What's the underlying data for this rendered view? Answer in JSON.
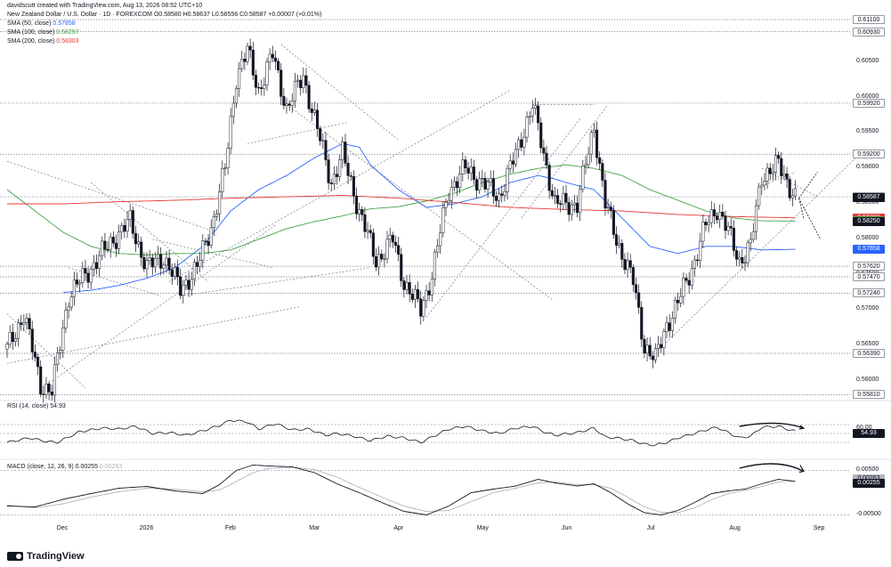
{
  "credit": "davidscutt created with TradingView.com, Aug 13, 2026 08:52 UTC+10",
  "header": {
    "symbol_line": "New Zealand Dollar / U.S. Dollar · 1D · FOREXCOM",
    "ohlc": "O0.58580 H0.58637 L0.58556 C0.58587 +0.00007 (+0.01%)",
    "sma50": {
      "label": "SMA (50, close)",
      "value": "0.57858",
      "color": "#2962ff"
    },
    "sma100": {
      "label": "SMA (100, close)",
      "value": "0.58257",
      "color": "#43a047"
    },
    "sma200": {
      "label": "SMA (200, close)",
      "value": "0.58303",
      "color": "#e53935"
    }
  },
  "rsi_header": {
    "label": "RSI (14, close)",
    "value": "54.93"
  },
  "macd_header": {
    "label": "MACD (close, 12, 26, 9)",
    "macd": "0.00255",
    "signal": "0.00263"
  },
  "footer_brand": "TradingView",
  "chart_data": {
    "type": "candlestick",
    "title": "New Zealand Dollar / U.S. Dollar · 1D · FOREXCOM",
    "x_ticks": [
      "Dec",
      "2026",
      "Feb",
      "Mar",
      "Apr",
      "May",
      "Jun",
      "Jul",
      "Aug",
      "Sep"
    ],
    "y_ticks": [
      "0.60500",
      "0.60000",
      "0.59500",
      "0.59000",
      "0.58500",
      "0.58000",
      "0.57500",
      "0.57000",
      "0.56500",
      "0.56000"
    ],
    "levels": [
      "0.61100",
      "0.60930",
      "0.59920",
      "0.59200",
      "0.58600",
      "0.57620",
      "0.57470",
      "0.57240",
      "0.56390",
      "0.55810"
    ],
    "labels": [
      {
        "value": "0.58587",
        "text": "0.58587",
        "style": "dark"
      },
      {
        "value": "0.58303",
        "text": "0.58303",
        "color": "#e53935"
      },
      {
        "value": "0.58257",
        "text": "0.58257",
        "color": "#43a047"
      },
      {
        "value": "0.58250",
        "text": "0.58250",
        "style": "dark"
      },
      {
        "value": "0.57858",
        "text": "0.57858",
        "color": "#2962ff"
      }
    ],
    "ylim": [
      0.5575,
      0.6115
    ],
    "close_anchors": [
      [
        0,
        0.5645
      ],
      [
        6,
        0.5695
      ],
      [
        12,
        0.5595
      ],
      [
        16,
        0.5585
      ],
      [
        22,
        0.572
      ],
      [
        30,
        0.576
      ],
      [
        38,
        0.58
      ],
      [
        44,
        0.5825
      ],
      [
        50,
        0.576
      ],
      [
        56,
        0.5775
      ],
      [
        62,
        0.573
      ],
      [
        68,
        0.576
      ],
      [
        74,
        0.583
      ],
      [
        78,
        0.59
      ],
      [
        82,
        0.603
      ],
      [
        86,
        0.6065
      ],
      [
        90,
        0.601
      ],
      [
        95,
        0.606
      ],
      [
        100,
        0.5985
      ],
      [
        106,
        0.603
      ],
      [
        112,
        0.594
      ],
      [
        116,
        0.588
      ],
      [
        120,
        0.592
      ],
      [
        126,
        0.584
      ],
      [
        132,
        0.577
      ],
      [
        138,
        0.58
      ],
      [
        142,
        0.574
      ],
      [
        148,
        0.57
      ],
      [
        152,
        0.575
      ],
      [
        158,
        0.587
      ],
      [
        164,
        0.59
      ],
      [
        170,
        0.588
      ],
      [
        176,
        0.586
      ],
      [
        182,
        0.592
      ],
      [
        188,
        0.599
      ],
      [
        192,
        0.592
      ],
      [
        196,
        0.585
      ],
      [
        204,
        0.585
      ],
      [
        210,
        0.596
      ],
      [
        214,
        0.585
      ],
      [
        218,
        0.58
      ],
      [
        224,
        0.574
      ],
      [
        228,
        0.565
      ],
      [
        232,
        0.563
      ],
      [
        236,
        0.568
      ],
      [
        240,
        0.571
      ],
      [
        246,
        0.577
      ],
      [
        250,
        0.582
      ],
      [
        254,
        0.5845
      ],
      [
        258,
        0.581
      ],
      [
        262,
        0.577
      ],
      [
        266,
        0.579
      ],
      [
        270,
        0.589
      ],
      [
        276,
        0.5905
      ],
      [
        280,
        0.5875
      ],
      [
        282,
        0.586
      ]
    ],
    "series": [
      {
        "name": "SMA (50, close)",
        "color": "#2962ff",
        "values": [
          [
            20,
            0.5725
          ],
          [
            30,
            0.5728
          ],
          [
            40,
            0.5735
          ],
          [
            50,
            0.5745
          ],
          [
            60,
            0.576
          ],
          [
            70,
            0.579
          ],
          [
            80,
            0.584
          ],
          [
            90,
            0.587
          ],
          [
            100,
            0.589
          ],
          [
            110,
            0.5915
          ],
          [
            120,
            0.5935
          ],
          [
            126,
            0.593
          ],
          [
            130,
            0.5905
          ],
          [
            140,
            0.587
          ],
          [
            150,
            0.5845
          ],
          [
            160,
            0.585
          ],
          [
            170,
            0.586
          ],
          [
            180,
            0.588
          ],
          [
            190,
            0.589
          ],
          [
            196,
            0.5885
          ],
          [
            200,
            0.588
          ],
          [
            210,
            0.587
          ],
          [
            220,
            0.583
          ],
          [
            230,
            0.579
          ],
          [
            240,
            0.578
          ],
          [
            250,
            0.579
          ],
          [
            260,
            0.579
          ],
          [
            270,
            0.5785
          ],
          [
            282,
            0.57858
          ]
        ]
      },
      {
        "name": "SMA (100, close)",
        "color": "#43a047",
        "values": [
          [
            0,
            0.587
          ],
          [
            10,
            0.584
          ],
          [
            20,
            0.581
          ],
          [
            30,
            0.579
          ],
          [
            40,
            0.578
          ],
          [
            50,
            0.5778
          ],
          [
            60,
            0.578
          ],
          [
            70,
            0.578
          ],
          [
            80,
            0.5785
          ],
          [
            90,
            0.58
          ],
          [
            100,
            0.5815
          ],
          [
            110,
            0.5825
          ],
          [
            120,
            0.5833
          ],
          [
            130,
            0.5843
          ],
          [
            140,
            0.5846
          ],
          [
            150,
            0.5854
          ],
          [
            160,
            0.5865
          ],
          [
            170,
            0.588
          ],
          [
            180,
            0.5892
          ],
          [
            190,
            0.59
          ],
          [
            200,
            0.5905
          ],
          [
            210,
            0.59
          ],
          [
            220,
            0.589
          ],
          [
            230,
            0.587
          ],
          [
            240,
            0.5855
          ],
          [
            250,
            0.584
          ],
          [
            260,
            0.583
          ],
          [
            270,
            0.5826
          ],
          [
            282,
            0.58257
          ]
        ]
      },
      {
        "name": "SMA (200, close)",
        "color": "#e53935",
        "values": [
          [
            0,
            0.585
          ],
          [
            20,
            0.585
          ],
          [
            40,
            0.5853
          ],
          [
            60,
            0.5855
          ],
          [
            80,
            0.5858
          ],
          [
            100,
            0.586
          ],
          [
            120,
            0.5862
          ],
          [
            140,
            0.5858
          ],
          [
            160,
            0.5852
          ],
          [
            180,
            0.5845
          ],
          [
            200,
            0.5842
          ],
          [
            220,
            0.584
          ],
          [
            240,
            0.5835
          ],
          [
            260,
            0.5832
          ],
          [
            282,
            0.58303
          ]
        ]
      }
    ],
    "rsi": {
      "y_ticks": [
        "60.00",
        "40.00"
      ],
      "last": "54.93",
      "anchors": [
        [
          0,
          30
        ],
        [
          8,
          40
        ],
        [
          14,
          32
        ],
        [
          18,
          30
        ],
        [
          26,
          54
        ],
        [
          34,
          62
        ],
        [
          40,
          60
        ],
        [
          46,
          66
        ],
        [
          52,
          50
        ],
        [
          58,
          52
        ],
        [
          64,
          46
        ],
        [
          70,
          56
        ],
        [
          76,
          68
        ],
        [
          80,
          80
        ],
        [
          86,
          76
        ],
        [
          90,
          60
        ],
        [
          96,
          72
        ],
        [
          102,
          58
        ],
        [
          108,
          60
        ],
        [
          114,
          46
        ],
        [
          118,
          50
        ],
        [
          124,
          44
        ],
        [
          130,
          34
        ],
        [
          136,
          44
        ],
        [
          142,
          40
        ],
        [
          148,
          30
        ],
        [
          152,
          42
        ],
        [
          158,
          60
        ],
        [
          164,
          66
        ],
        [
          170,
          56
        ],
        [
          176,
          50
        ],
        [
          182,
          62
        ],
        [
          188,
          66
        ],
        [
          192,
          54
        ],
        [
          196,
          46
        ],
        [
          204,
          52
        ],
        [
          210,
          62
        ],
        [
          214,
          42
        ],
        [
          218,
          40
        ],
        [
          224,
          34
        ],
        [
          228,
          26
        ],
        [
          232,
          24
        ],
        [
          236,
          30
        ],
        [
          240,
          40
        ],
        [
          246,
          50
        ],
        [
          250,
          58
        ],
        [
          254,
          64
        ],
        [
          258,
          52
        ],
        [
          262,
          40
        ],
        [
          266,
          44
        ],
        [
          270,
          64
        ],
        [
          276,
          66
        ],
        [
          280,
          58
        ],
        [
          282,
          54.93
        ]
      ]
    },
    "macd": {
      "y_ticks": [
        "0.00500",
        "-0.00500"
      ],
      "macd_last": "0.00255",
      "signal_last": "0.00263",
      "macd_anchors": [
        [
          0,
          -0.003
        ],
        [
          10,
          -0.0032
        ],
        [
          20,
          -0.0015
        ],
        [
          30,
          -0.0002
        ],
        [
          40,
          0.001
        ],
        [
          50,
          0.0014
        ],
        [
          60,
          0.0004
        ],
        [
          70,
          -0.0002
        ],
        [
          76,
          0.0018
        ],
        [
          82,
          0.005
        ],
        [
          88,
          0.0062
        ],
        [
          94,
          0.006
        ],
        [
          102,
          0.0058
        ],
        [
          110,
          0.0045
        ],
        [
          118,
          0.002
        ],
        [
          126,
          0.0
        ],
        [
          134,
          -0.0022
        ],
        [
          142,
          -0.0042
        ],
        [
          150,
          -0.005
        ],
        [
          158,
          -0.003
        ],
        [
          166,
          0.0
        ],
        [
          174,
          0.0008
        ],
        [
          182,
          0.0015
        ],
        [
          190,
          0.003
        ],
        [
          196,
          0.0022
        ],
        [
          204,
          0.0015
        ],
        [
          210,
          0.002
        ],
        [
          216,
          0.0
        ],
        [
          222,
          -0.0025
        ],
        [
          228,
          -0.0045
        ],
        [
          234,
          -0.005
        ],
        [
          240,
          -0.004
        ],
        [
          246,
          -0.0022
        ],
        [
          252,
          -0.0002
        ],
        [
          258,
          0.0004
        ],
        [
          264,
          0.0008
        ],
        [
          270,
          0.002
        ],
        [
          276,
          0.003
        ],
        [
          282,
          0.00255
        ]
      ],
      "signal_anchors": [
        [
          0,
          -0.0028
        ],
        [
          10,
          -0.0034
        ],
        [
          20,
          -0.0025
        ],
        [
          30,
          -0.001
        ],
        [
          40,
          0.0002
        ],
        [
          50,
          0.001
        ],
        [
          60,
          0.0008
        ],
        [
          70,
          0.0002
        ],
        [
          76,
          0.0006
        ],
        [
          82,
          0.0025
        ],
        [
          88,
          0.0045
        ],
        [
          94,
          0.0055
        ],
        [
          102,
          0.0057
        ],
        [
          110,
          0.0052
        ],
        [
          118,
          0.0035
        ],
        [
          126,
          0.0012
        ],
        [
          134,
          -0.001
        ],
        [
          142,
          -0.003
        ],
        [
          150,
          -0.0042
        ],
        [
          158,
          -0.004
        ],
        [
          166,
          -0.002
        ],
        [
          174,
          0.0
        ],
        [
          182,
          0.001
        ],
        [
          190,
          0.0022
        ],
        [
          196,
          0.0024
        ],
        [
          204,
          0.0018
        ],
        [
          210,
          0.0018
        ],
        [
          216,
          0.001
        ],
        [
          222,
          -0.001
        ],
        [
          228,
          -0.0032
        ],
        [
          234,
          -0.0044
        ],
        [
          240,
          -0.0045
        ],
        [
          246,
          -0.0034
        ],
        [
          252,
          -0.0016
        ],
        [
          258,
          -0.0002
        ],
        [
          264,
          0.0005
        ],
        [
          270,
          0.0014
        ],
        [
          276,
          0.0024
        ],
        [
          282,
          0.00263
        ]
      ]
    }
  }
}
